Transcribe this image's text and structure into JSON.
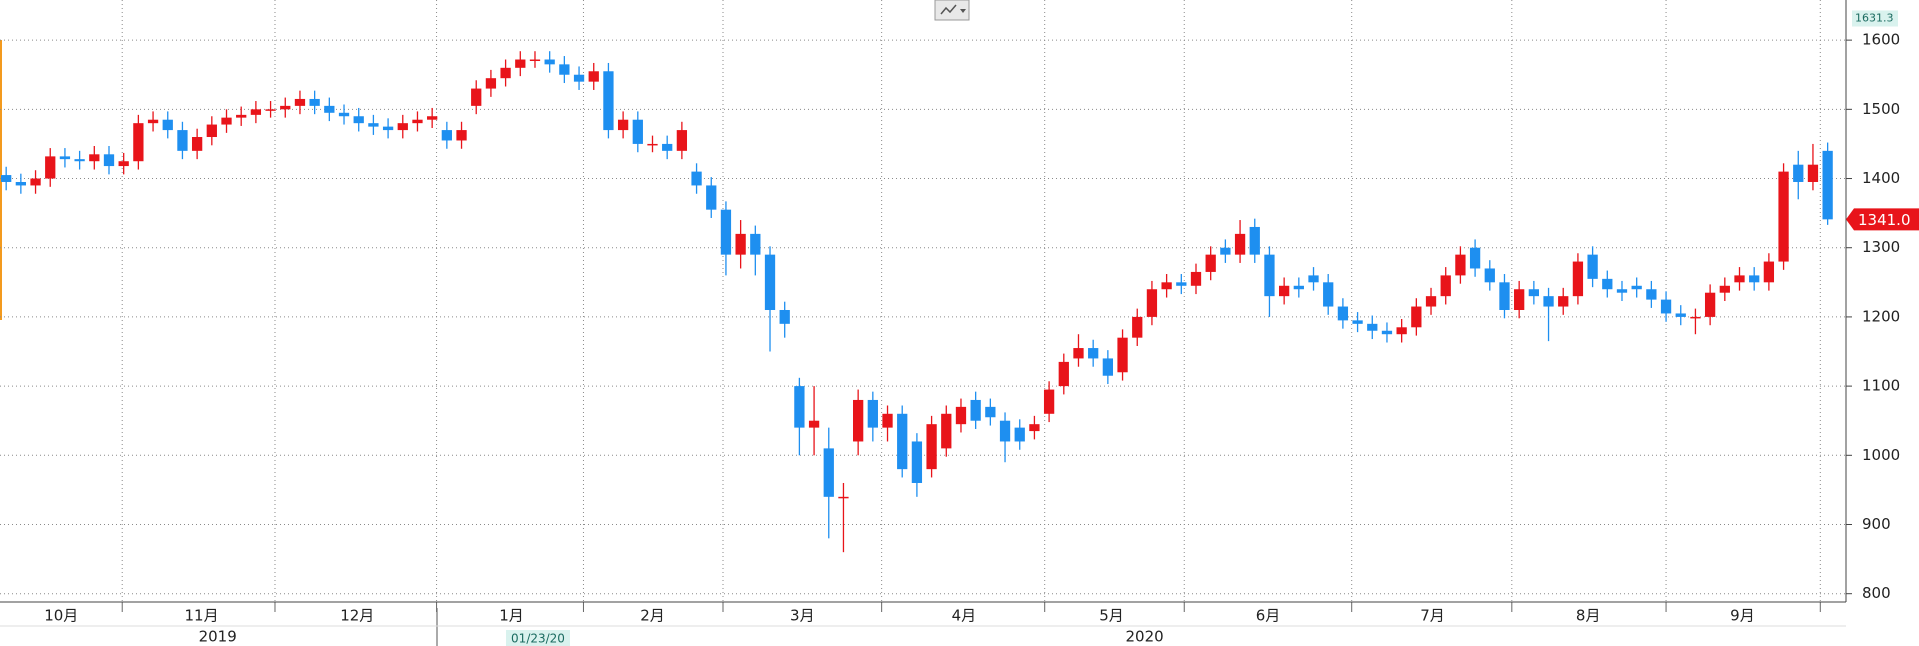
{
  "chart_data": {
    "type": "candlestick",
    "up_color": "#e8141a",
    "down_color": "#1e8ff0",
    "grid": true,
    "xlim": [
      -0.42,
      125.25
    ],
    "ylim": [
      788,
      1658
    ],
    "yticks": [
      800,
      900,
      1000,
      1100,
      1200,
      1300,
      1400,
      1500,
      1600
    ],
    "xticks": [
      7.9,
      18.3,
      29.3,
      39.3,
      48.8,
      59.6,
      70.7,
      80.2,
      91.6,
      102.5,
      113,
      123.5
    ],
    "month_labels": [
      {
        "value": 3.75,
        "label": "10月"
      },
      {
        "value": 13.3,
        "label": "11月"
      },
      {
        "value": 23.9,
        "label": "12月"
      },
      {
        "value": 34.4,
        "label": "1月"
      },
      {
        "value": 44,
        "label": "2月"
      },
      {
        "value": 54.2,
        "label": "3月"
      },
      {
        "value": 65.2,
        "label": "4月"
      },
      {
        "value": 75.25,
        "label": "5月"
      },
      {
        "value": 85.9,
        "label": "6月"
      },
      {
        "value": 97.1,
        "label": "7月"
      },
      {
        "value": 107.7,
        "label": "8月"
      },
      {
        "value": 118.2,
        "label": "9月"
      }
    ],
    "year_labels": [
      {
        "value": 14.4,
        "label": "2019"
      },
      {
        "value": 77.5,
        "label": "2020"
      }
    ],
    "crosshair_label": "01/23/20",
    "price_markers": [
      1631.3,
      {
        "value": 1341,
        "label": "1341.0"
      }
    ],
    "open": [
      1405,
      1395,
      1390,
      1400,
      1432,
      1428,
      1425,
      1435,
      1418,
      1425,
      1480,
      1485,
      1470,
      1440,
      1460,
      1478,
      1488,
      1492,
      1500,
      1500,
      1505,
      1515,
      1505,
      1495,
      1490,
      1480,
      1475,
      1470,
      1480,
      1485,
      1470,
      1455,
      1505,
      1530,
      1545,
      1560,
      1572,
      1572,
      1565,
      1550,
      1540,
      1555,
      1470,
      1485,
      1450,
      1450,
      1440,
      1410,
      1390,
      1355,
      1290,
      1320,
      1290,
      1210,
      1100,
      1040,
      1010,
      940,
      1020,
      1080,
      1040,
      1060,
      1020,
      980,
      1010,
      1045,
      1080,
      1070,
      1050,
      1040,
      1035,
      1060,
      1100,
      1140,
      1155,
      1140,
      1120,
      1170,
      1200,
      1240,
      1250,
      1245,
      1265,
      1300,
      1290,
      1330,
      1290,
      1230,
      1245,
      1260,
      1250,
      1215,
      1195,
      1190,
      1180,
      1175,
      1185,
      1215,
      1230,
      1260,
      1300,
      1270,
      1250,
      1210,
      1240,
      1230,
      1215,
      1230,
      1290,
      1255,
      1240,
      1245,
      1240,
      1225,
      1205,
      1200,
      1200,
      1235,
      1250,
      1260,
      1250,
      1280,
      1420,
      1395,
      1440
    ],
    "high": [
      1417,
      1407,
      1412,
      1444,
      1444,
      1440,
      1447,
      1447,
      1437,
      1492,
      1497,
      1497,
      1482,
      1472,
      1490,
      1500,
      1504,
      1512,
      1512,
      1517,
      1527,
      1527,
      1517,
      1507,
      1502,
      1492,
      1487,
      1492,
      1497,
      1502,
      1482,
      1482,
      1542,
      1557,
      1572,
      1584,
      1584,
      1584,
      1577,
      1562,
      1567,
      1567,
      1497,
      1497,
      1462,
      1462,
      1482,
      1422,
      1402,
      1367,
      1340,
      1332,
      1302,
      1222,
      1112,
      1100,
      1040,
      960,
      1095,
      1092,
      1072,
      1072,
      1032,
      1057,
      1072,
      1082,
      1092,
      1082,
      1062,
      1052,
      1057,
      1107,
      1147,
      1175,
      1167,
      1152,
      1182,
      1212,
      1252,
      1262,
      1262,
      1277,
      1302,
      1312,
      1340,
      1342,
      1302,
      1257,
      1257,
      1272,
      1262,
      1227,
      1207,
      1202,
      1192,
      1197,
      1227,
      1242,
      1272,
      1302,
      1312,
      1282,
      1262,
      1252,
      1252,
      1242,
      1242,
      1292,
      1302,
      1267,
      1252,
      1257,
      1252,
      1237,
      1217,
      1212,
      1247,
      1257,
      1272,
      1272,
      1292,
      1422,
      1440,
      1450,
      1452
    ],
    "low": [
      1383,
      1378,
      1378,
      1388,
      1416,
      1413,
      1413,
      1406,
      1406,
      1413,
      1468,
      1458,
      1428,
      1428,
      1448,
      1466,
      1476,
      1480,
      1488,
      1488,
      1493,
      1493,
      1483,
      1478,
      1468,
      1463,
      1458,
      1458,
      1468,
      1473,
      1443,
      1443,
      1493,
      1518,
      1533,
      1548,
      1560,
      1553,
      1538,
      1528,
      1528,
      1458,
      1458,
      1438,
      1438,
      1428,
      1428,
      1378,
      1343,
      1260,
      1270,
      1260,
      1150,
      1170,
      1000,
      1000,
      880,
      860,
      1000,
      1020,
      1020,
      968,
      940,
      968,
      998,
      1033,
      1038,
      1043,
      990,
      1008,
      1023,
      1048,
      1088,
      1128,
      1128,
      1103,
      1108,
      1158,
      1188,
      1228,
      1233,
      1233,
      1253,
      1278,
      1278,
      1278,
      1200,
      1218,
      1228,
      1238,
      1203,
      1183,
      1178,
      1168,
      1163,
      1163,
      1173,
      1203,
      1218,
      1248,
      1258,
      1238,
      1198,
      1198,
      1218,
      1165,
      1203,
      1218,
      1243,
      1228,
      1223,
      1228,
      1213,
      1193,
      1188,
      1175,
      1188,
      1223,
      1238,
      1238,
      1238,
      1268,
      1370,
      1383,
      1333
    ],
    "close": [
      1395,
      1390,
      1400,
      1432,
      1428,
      1425,
      1435,
      1418,
      1425,
      1480,
      1485,
      1470,
      1440,
      1460,
      1478,
      1488,
      1492,
      1500,
      1500,
      1505,
      1515,
      1505,
      1495,
      1490,
      1480,
      1475,
      1470,
      1480,
      1485,
      1490,
      1455,
      1470,
      1530,
      1545,
      1560,
      1572,
      1572,
      1565,
      1550,
      1540,
      1555,
      1470,
      1485,
      1450,
      1450,
      1440,
      1470,
      1390,
      1355,
      1290,
      1320,
      1290,
      1210,
      1190,
      1040,
      1050,
      940,
      940,
      1080,
      1040,
      1060,
      980,
      960,
      1045,
      1060,
      1070,
      1050,
      1055,
      1020,
      1020,
      1045,
      1095,
      1135,
      1155,
      1140,
      1115,
      1170,
      1200,
      1240,
      1250,
      1245,
      1265,
      1290,
      1290,
      1320,
      1290,
      1230,
      1245,
      1240,
      1250,
      1215,
      1195,
      1190,
      1180,
      1175,
      1185,
      1215,
      1230,
      1260,
      1290,
      1270,
      1250,
      1210,
      1240,
      1230,
      1215,
      1230,
      1280,
      1255,
      1240,
      1235,
      1240,
      1225,
      1205,
      1200,
      1200,
      1235,
      1245,
      1260,
      1250,
      1280,
      1410,
      1395,
      1420,
      1341
    ]
  }
}
